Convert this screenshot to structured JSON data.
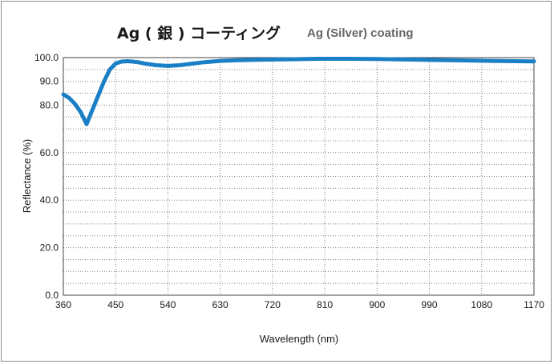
{
  "chart_data": {
    "type": "line",
    "title": "Ag ( 銀 ) コーティング",
    "subtitle": "Ag (Silver) coating",
    "xlabel": "Wavelength (nm)",
    "ylabel": "Reflectance (%)",
    "xlim": [
      360,
      1170
    ],
    "ylim": [
      0,
      100
    ],
    "x_ticks": [
      "360",
      "450",
      "540",
      "630",
      "720",
      "810",
      "900",
      "990",
      "1080",
      "1170"
    ],
    "y_ticks": [
      "0.0",
      "20.0",
      "40.0",
      "60.0",
      "80.0",
      "90.0",
      "100.0"
    ],
    "grid": true,
    "colors": {
      "series": "#1a7fc4",
      "grid": "#808080",
      "text": "#1a1a1a",
      "subtitle": "#666666"
    },
    "series": [
      {
        "x": [
          360,
          370,
          380,
          390,
          400,
          410,
          420,
          430,
          440,
          450,
          460,
          470,
          480,
          490,
          500,
          520,
          540,
          560,
          580,
          600,
          630,
          660,
          700,
          750,
          800,
          850,
          900,
          950,
          1000,
          1050,
          1100,
          1140,
          1170
        ],
        "values": [
          84.5,
          83.0,
          80.5,
          77.0,
          72.0,
          78.0,
          84.0,
          90.0,
          95.0,
          97.5,
          98.3,
          98.5,
          98.3,
          98.0,
          97.5,
          96.8,
          96.5,
          96.8,
          97.4,
          98.0,
          98.6,
          98.9,
          99.1,
          99.3,
          99.5,
          99.5,
          99.4,
          99.2,
          99.0,
          98.8,
          98.6,
          98.5,
          98.4
        ]
      }
    ]
  }
}
